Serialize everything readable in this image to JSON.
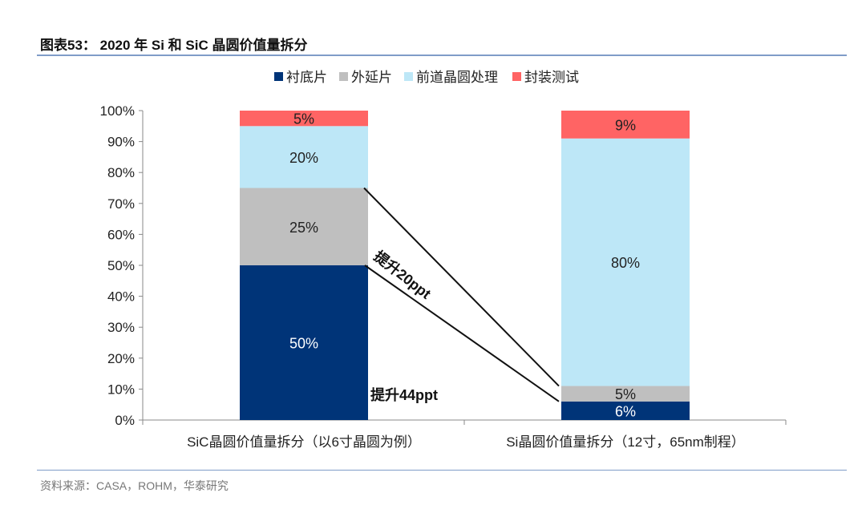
{
  "title": "图表53： 2020 年 Si 和 SiC 晶圆价值量拆分",
  "source": "资料来源：CASA，ROHM，华泰研究",
  "chart_data": {
    "type": "bar",
    "stacked": true,
    "categories": [
      "SiC晶圆价值量拆分（以6寸晶圆为例）",
      "Si晶圆价值量拆分（12寸，65nm制程）"
    ],
    "series": [
      {
        "name": "衬底片",
        "color": "#003478",
        "values": [
          50,
          6
        ],
        "labels": [
          "50%",
          "6%"
        ],
        "label_color": "#ffffff"
      },
      {
        "name": "外延片",
        "color": "#bfbfbf",
        "values": [
          25,
          5
        ],
        "labels": [
          "25%",
          "5%"
        ],
        "label_color": "#222222"
      },
      {
        "name": "前道晶圆处理",
        "color": "#bde7f7",
        "values": [
          20,
          80
        ],
        "labels": [
          "20%",
          "80%"
        ],
        "label_color": "#222222"
      },
      {
        "name": "封装测试",
        "color": "#ff6464",
        "values": [
          5,
          9
        ],
        "labels": [
          "5%",
          "9%"
        ],
        "label_color": "#222222"
      }
    ],
    "ylim": [
      0,
      100
    ],
    "yticks": [
      "0%",
      "10%",
      "20%",
      "30%",
      "40%",
      "50%",
      "60%",
      "70%",
      "80%",
      "90%",
      "100%"
    ],
    "legend": "top",
    "annotations": [
      "提升20ppt",
      "提升44ppt"
    ]
  }
}
